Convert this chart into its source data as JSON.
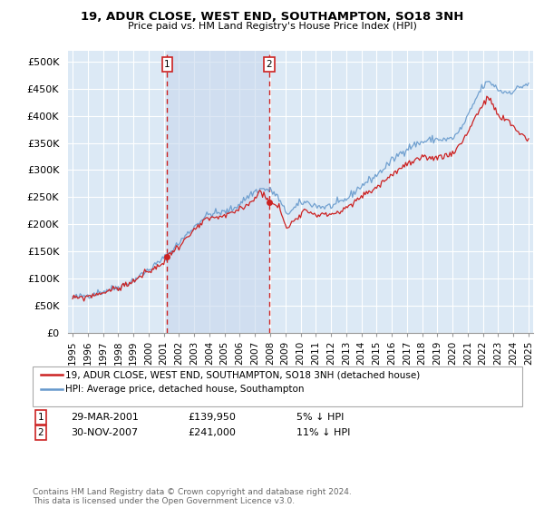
{
  "title": "19, ADUR CLOSE, WEST END, SOUTHAMPTON, SO18 3NH",
  "subtitle": "Price paid vs. HM Land Registry's House Price Index (HPI)",
  "ylabel_ticks": [
    "£0",
    "£50K",
    "£100K",
    "£150K",
    "£200K",
    "£250K",
    "£300K",
    "£350K",
    "£400K",
    "£450K",
    "£500K"
  ],
  "ytick_values": [
    0,
    50000,
    100000,
    150000,
    200000,
    250000,
    300000,
    350000,
    400000,
    450000,
    500000
  ],
  "ylim": [
    0,
    520000
  ],
  "xlim_start": 1994.7,
  "xlim_end": 2025.3,
  "background_color": "#dce9f5",
  "grid_color": "#ffffff",
  "hpi_line_color": "#6699cc",
  "price_line_color": "#cc2222",
  "vline_color": "#cc2222",
  "shade_color": "#dce9f5",
  "marker1_x": 2001.23,
  "marker2_x": 2007.92,
  "sale1_price_y": 139950,
  "sale2_price_y": 241000,
  "sale1_date": "29-MAR-2001",
  "sale1_price": 139950,
  "sale1_pct": "5% ↓ HPI",
  "sale2_date": "30-NOV-2007",
  "sale2_price": 241000,
  "sale2_pct": "11% ↓ HPI",
  "legend_label1": "19, ADUR CLOSE, WEST END, SOUTHAMPTON, SO18 3NH (detached house)",
  "legend_label2": "HPI: Average price, detached house, Southampton",
  "footnote": "Contains HM Land Registry data © Crown copyright and database right 2024.\nThis data is licensed under the Open Government Licence v3.0.",
  "xtick_years": [
    1995,
    1996,
    1997,
    1998,
    1999,
    2000,
    2001,
    2002,
    2003,
    2004,
    2005,
    2006,
    2007,
    2008,
    2009,
    2010,
    2011,
    2012,
    2013,
    2014,
    2015,
    2016,
    2017,
    2018,
    2019,
    2020,
    2021,
    2022,
    2023,
    2024,
    2025
  ]
}
